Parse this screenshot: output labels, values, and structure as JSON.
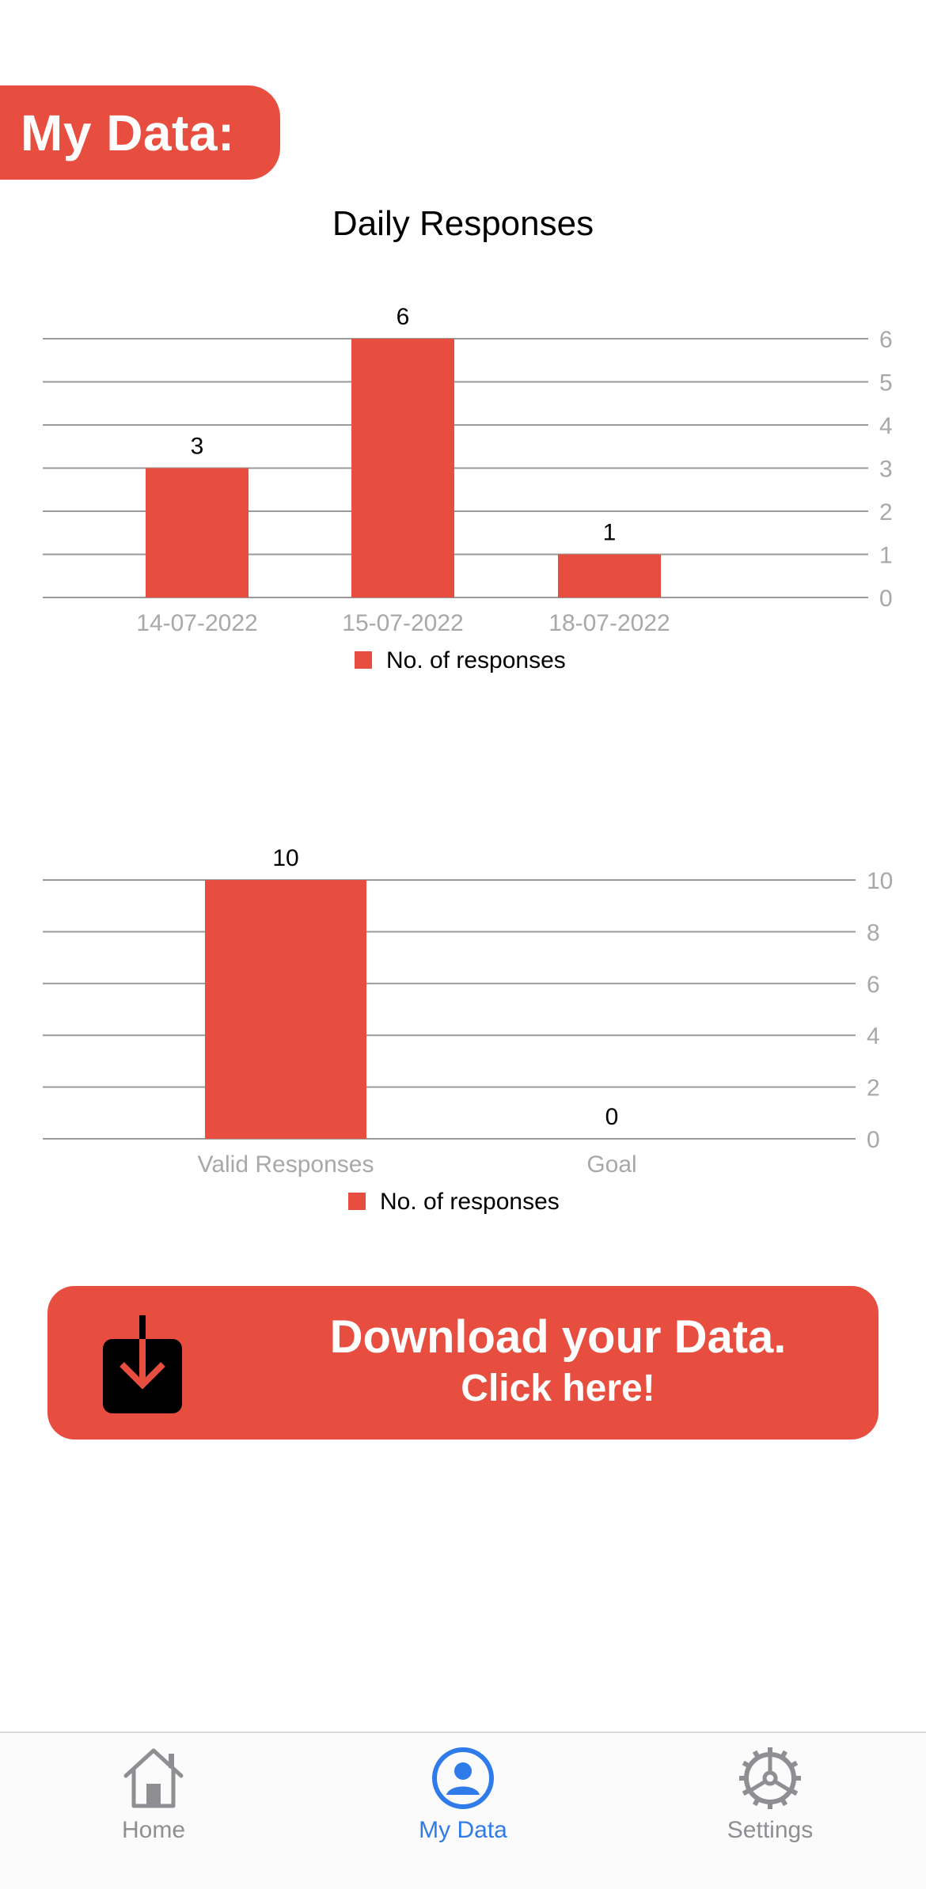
{
  "header": {
    "title": "My Data:"
  },
  "charts": [
    {
      "title": "Daily Responses",
      "legend": "No. of responses",
      "color": "#E84E3F",
      "y_ticks": [
        "0",
        "1",
        "2",
        "3",
        "4",
        "5",
        "6"
      ],
      "bar_labels": [
        "3",
        "6",
        "1"
      ],
      "categories": [
        "14-07-2022",
        "15-07-2022",
        "18-07-2022"
      ]
    },
    {
      "title": "",
      "legend": "No. of responses",
      "color": "#E84E3F",
      "y_ticks": [
        "0",
        "2",
        "4",
        "6",
        "8",
        "10"
      ],
      "bar_labels": [
        "10",
        "0"
      ],
      "categories": [
        "Valid Responses",
        "Goal"
      ]
    }
  ],
  "chart_data": [
    {
      "type": "bar",
      "title": "Daily Responses",
      "categories": [
        "14-07-2022",
        "15-07-2022",
        "18-07-2022"
      ],
      "series": [
        {
          "name": "No. of responses",
          "values": [
            3,
            6,
            1
          ]
        }
      ],
      "ylim": [
        0,
        6
      ],
      "y_ticks": [
        0,
        1,
        2,
        3,
        4,
        5,
        6
      ],
      "y_axis_side": "right",
      "grid": true,
      "legend_position": "bottom",
      "xlabel": "",
      "ylabel": ""
    },
    {
      "type": "bar",
      "title": "",
      "categories": [
        "Valid Responses",
        "Goal"
      ],
      "series": [
        {
          "name": "No. of responses",
          "values": [
            10,
            0
          ]
        }
      ],
      "ylim": [
        0,
        10
      ],
      "y_ticks": [
        0,
        2,
        4,
        6,
        8,
        10
      ],
      "y_axis_side": "right",
      "grid": true,
      "legend_position": "bottom",
      "xlabel": "",
      "ylabel": ""
    }
  ],
  "download": {
    "line1": "Download your Data.",
    "line2": "Click here!",
    "icon": "download-icon"
  },
  "tabbar": {
    "tabs": [
      {
        "label": "Home",
        "icon": "home-icon",
        "active": false
      },
      {
        "label": "My Data",
        "icon": "person-circle-icon",
        "active": true
      },
      {
        "label": "Settings",
        "icon": "gear-icon",
        "active": false
      }
    ],
    "active_color": "#2F7BEA",
    "inactive_color": "#8e8e93"
  }
}
